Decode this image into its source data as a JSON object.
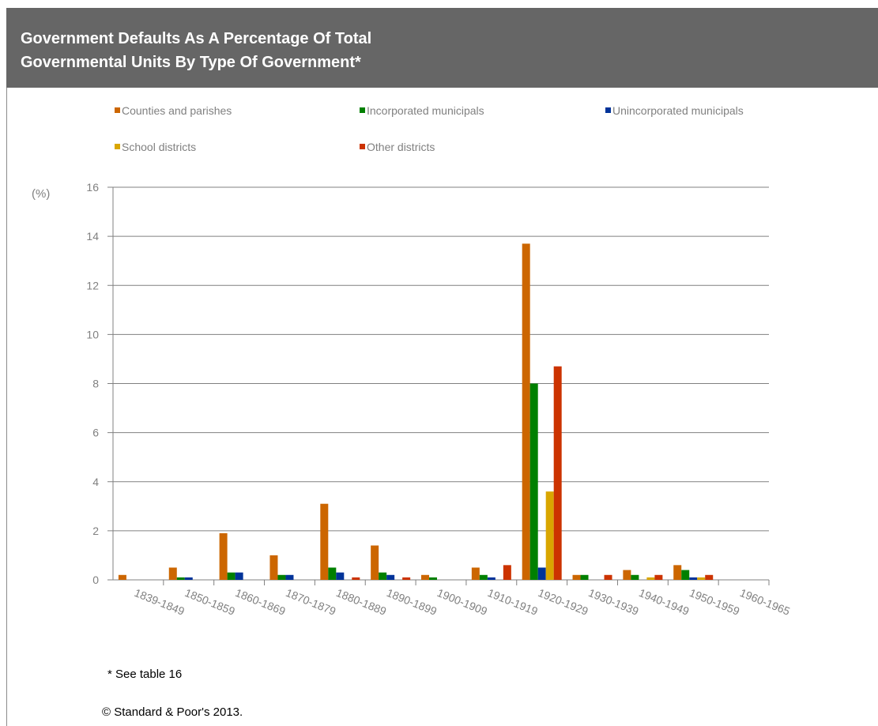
{
  "chart_data": {
    "type": "bar",
    "title": "Government Defaults As A Percentage Of Total\nGovernmental Units By Type Of Government*",
    "ylabel": "(%)",
    "xlabel": "",
    "ylim": [
      0,
      16
    ],
    "yticks": [
      0,
      2,
      4,
      6,
      8,
      10,
      12,
      14,
      16
    ],
    "grid": true,
    "legend_position": "top",
    "categories": [
      "1839-1849",
      "1850-1859",
      "1860-1869",
      "1870-1879",
      "1880-1889",
      "1890-1899",
      "1900-1909",
      "1910-1919",
      "1920-1929",
      "1930-1939",
      "1940-1949",
      "1950-1959",
      "1960-1965"
    ],
    "series": [
      {
        "name": "Counties and parishes",
        "color": "#cc6600",
        "values": [
          0.2,
          0.5,
          1.9,
          1.0,
          3.1,
          1.4,
          0.2,
          0.5,
          13.7,
          0.2,
          0.4,
          0.6,
          0
        ]
      },
      {
        "name": "Incorporated municipals",
        "color": "#008000",
        "values": [
          0,
          0.1,
          0.3,
          0.2,
          0.5,
          0.3,
          0.1,
          0.2,
          8.0,
          0.2,
          0.2,
          0.4,
          0
        ]
      },
      {
        "name": "Unincorporated municipals",
        "color": "#003399",
        "values": [
          0,
          0.1,
          0.3,
          0.2,
          0.3,
          0.2,
          0,
          0.1,
          0.5,
          0,
          0,
          0.1,
          0
        ]
      },
      {
        "name": "School districts",
        "color": "#d9a600",
        "values": [
          0,
          0,
          0,
          0,
          0,
          0,
          0,
          0,
          3.6,
          0,
          0.1,
          0.1,
          0
        ]
      },
      {
        "name": "Other districts",
        "color": "#cc3300",
        "values": [
          0,
          0,
          0,
          0,
          0.1,
          0.1,
          0,
          0.6,
          8.7,
          0.2,
          0.2,
          0.2,
          0
        ]
      }
    ],
    "footnote": "* See table 16",
    "source": "© Standard & Poor's 2013."
  },
  "colors": {
    "header_bg": "#666666",
    "grid": "#808080",
    "axis_text": "#808080"
  }
}
